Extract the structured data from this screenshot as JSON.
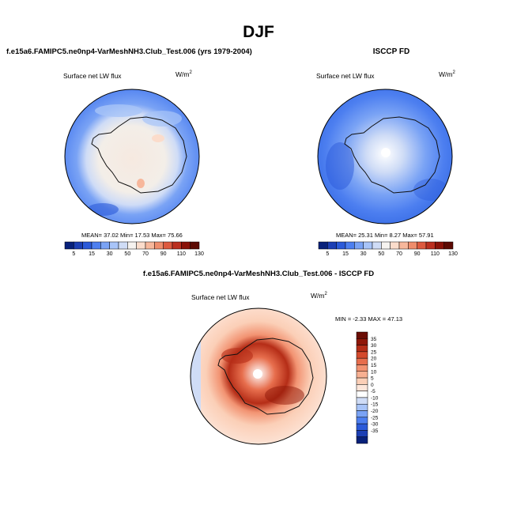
{
  "title": "DJF",
  "colors": {
    "abs_palette": [
      "#08217a",
      "#1c3fb4",
      "#2b5ad9",
      "#4d7ff0",
      "#7aa3f5",
      "#a8c4f8",
      "#cfdcf6",
      "#f6f3f0",
      "#fbdccb",
      "#f7b79b",
      "#ef8d6c",
      "#dd5a3f",
      "#bb2f1f",
      "#8a1208",
      "#5c0a03"
    ],
    "diff_palette": [
      "#08217a",
      "#1c3fb4",
      "#2b5ad9",
      "#4d7ff0",
      "#7aa3f5",
      "#a8c4f8",
      "#cfdcf6",
      "#ffffff",
      "#fde6da",
      "#fbcfb7",
      "#f7b092",
      "#f29372",
      "#e76e4d",
      "#d44a2d",
      "#b52d17",
      "#8f1708",
      "#6b0d04"
    ]
  },
  "chart_data": [
    {
      "type": "heatmap",
      "panel": "model",
      "title": "f.e15a6.FAMIPC5.ne0np4-VarMeshNH3.Club_Test.006 (yrs 1979-2004)",
      "variable": "Surface net LW flux",
      "units": "W/m",
      "units_sup": "2",
      "stats": {
        "mean": 37.02,
        "min": 17.53,
        "max": 75.66
      },
      "stats_text": "MEAN=  37.02  Min=  17.53  Max=  75.66",
      "colorbar_ticks": [
        "5",
        "15",
        "30",
        "50",
        "70",
        "90",
        "110",
        "130"
      ]
    },
    {
      "type": "heatmap",
      "panel": "obs",
      "title": "ISCCP FD",
      "variable": "Surface net LW flux",
      "units": "W/m",
      "units_sup": "2",
      "stats": {
        "mean": 25.31,
        "min": 8.27,
        "max": 57.91
      },
      "stats_text": "MEAN=  25.31  Min=   8.27  Max=  57.91",
      "colorbar_ticks": [
        "5",
        "15",
        "30",
        "50",
        "70",
        "90",
        "110",
        "130"
      ]
    },
    {
      "type": "heatmap",
      "panel": "difference",
      "title": "f.e15a6.FAMIPC5.ne0np4-VarMeshNH3.Club_Test.006 - ISCCP FD",
      "variable": "Surface net LW flux",
      "units": "W/m",
      "units_sup": "2",
      "stats": {
        "min": -2.33,
        "max": 47.13
      },
      "stats_text": "MIN =  -2.33 MAX =  47.13",
      "colorbar_ticks": [
        "35",
        "30",
        "25",
        "20",
        "15",
        "10",
        "5",
        "0",
        "-5",
        "-10",
        "-15",
        "-20",
        "-25",
        "-30",
        "-35"
      ]
    }
  ]
}
